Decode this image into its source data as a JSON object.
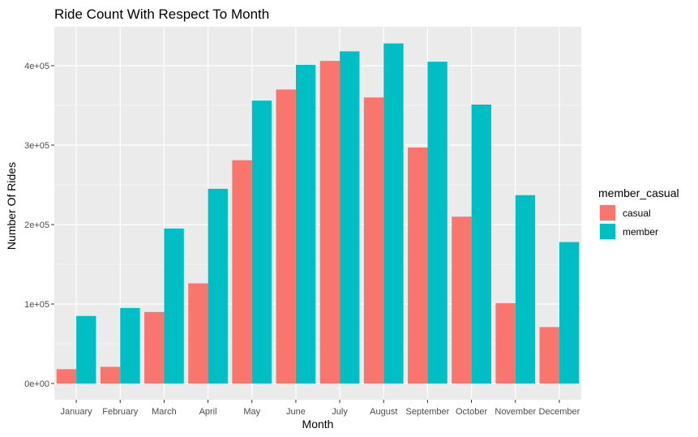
{
  "chart_data": {
    "type": "bar",
    "title": "Ride Count With Respect To Month",
    "xlabel": "Month",
    "ylabel": "Number Of Rides",
    "categories": [
      "January",
      "February",
      "March",
      "April",
      "May",
      "June",
      "July",
      "August",
      "September",
      "October",
      "November",
      "December"
    ],
    "series": [
      {
        "name": "casual",
        "color": "#F8766D",
        "values": [
          18000,
          21000,
          90000,
          126000,
          281000,
          370000,
          406000,
          360000,
          297000,
          210000,
          101000,
          71000
        ]
      },
      {
        "name": "member",
        "color": "#00BFC4",
        "values": [
          85000,
          95000,
          195000,
          245000,
          356000,
          401000,
          418000,
          428000,
          405000,
          351000,
          237000,
          178000
        ]
      }
    ],
    "ylim": [
      0,
      440000
    ],
    "yticks": [
      {
        "value": 0,
        "label": "0e+00"
      },
      {
        "value": 100000,
        "label": "1e+05"
      },
      {
        "value": 200000,
        "label": "2e+05"
      },
      {
        "value": 300000,
        "label": "3e+05"
      },
      {
        "value": 400000,
        "label": "4e+05"
      }
    ],
    "grid": true,
    "legend": {
      "title": "member_casual",
      "placement": "right"
    },
    "panel_color": "#EBEBEB"
  }
}
